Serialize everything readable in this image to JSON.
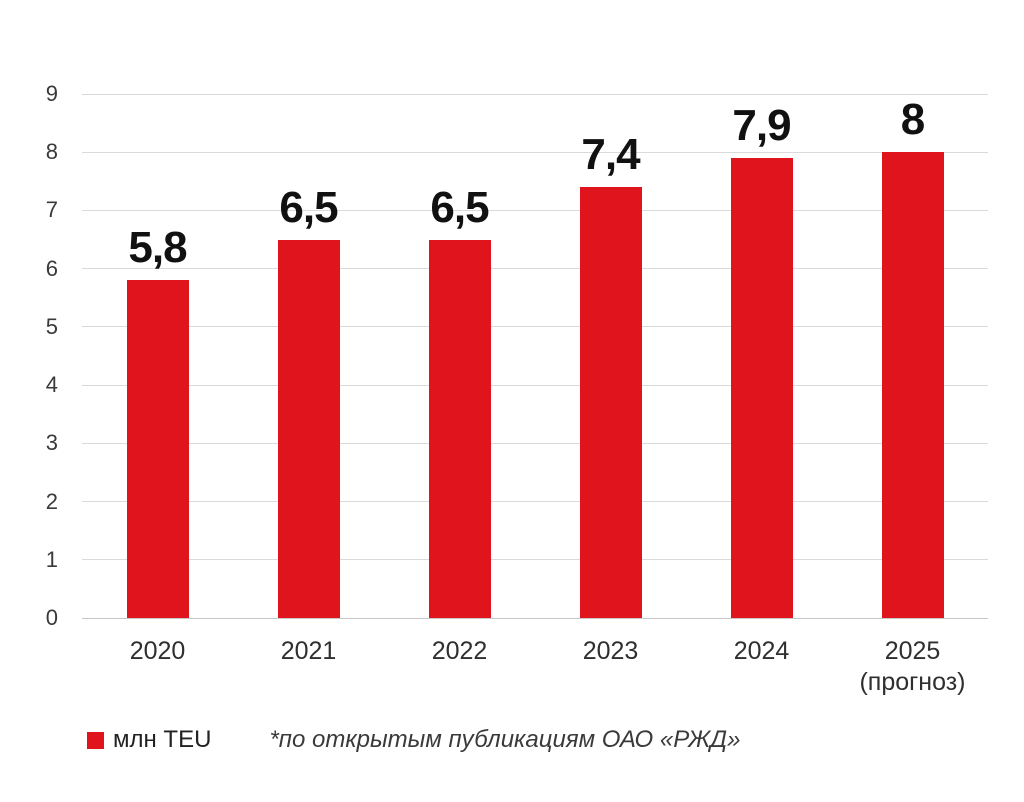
{
  "chart_data": {
    "type": "bar",
    "title": "",
    "xlabel": "",
    "ylabel": "",
    "categories": [
      "2020",
      "2021",
      "2022",
      "2023",
      "2024",
      "2025"
    ],
    "category_notes": [
      "",
      "",
      "",
      "",
      "",
      "(прогноз)"
    ],
    "values": [
      5.8,
      6.5,
      6.5,
      7.4,
      7.9,
      8
    ],
    "value_labels": [
      "5,8",
      "6,5",
      "6,5",
      "7,4",
      "7,9",
      "8"
    ],
    "ylim": [
      0,
      9
    ],
    "yticks": [
      0,
      1,
      2,
      3,
      4,
      5,
      6,
      7,
      8,
      9
    ],
    "grid": "horizontal",
    "legend_position": "bottom-left",
    "bar_color": "#e0141d",
    "grid_color": "#dadada",
    "axis_line_color": "#c7c7c7",
    "tick_label_color": "#3a3a3a",
    "value_label_color": "#111111"
  },
  "legend": {
    "label": "млн TEU",
    "swatch_color": "#e0141d"
  },
  "footnote": {
    "text": "*по открытым публикациям ОАО «РЖД»"
  }
}
